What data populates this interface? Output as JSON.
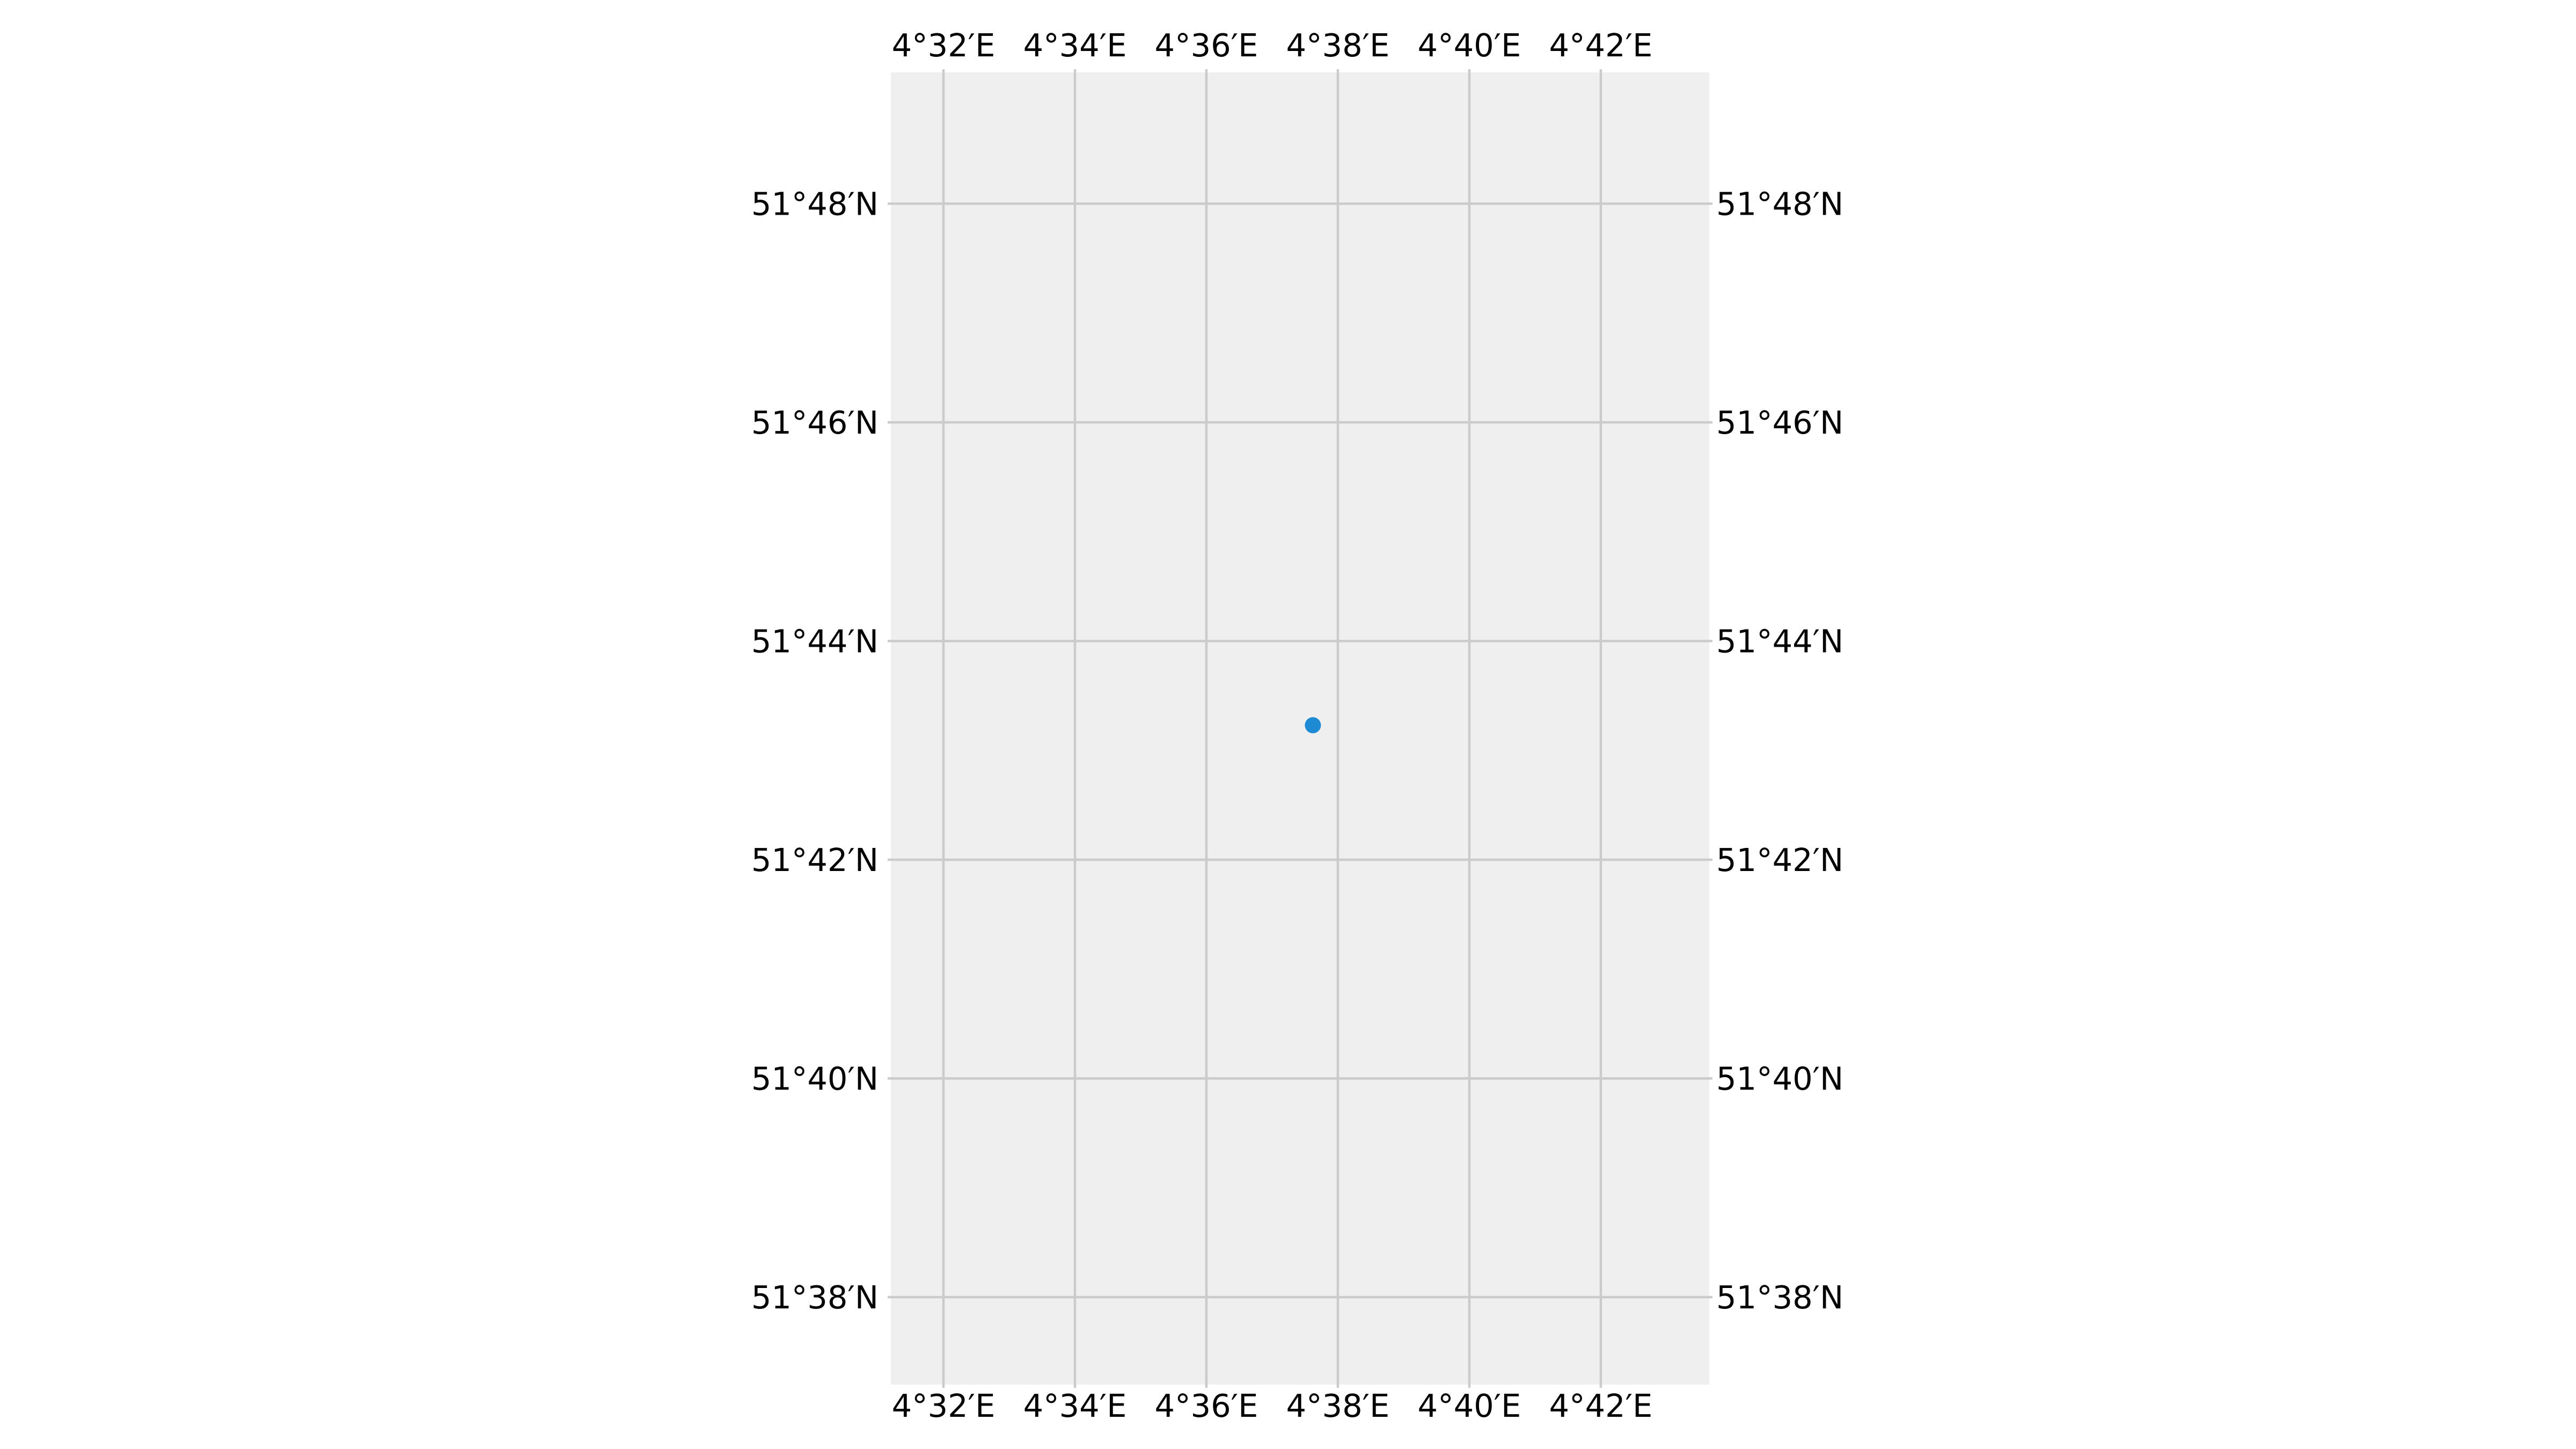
{
  "map": {
    "projection": "PlateCarree",
    "extent": {
      "lon_min_deg": 4.52,
      "lon_max_deg": 4.7275,
      "lat_min_deg": 51.62,
      "lat_max_deg": 51.82
    },
    "background_color": "#efefef",
    "grid": true,
    "grid_color": "#cbcbcb",
    "lon_gridlines": [
      {
        "value": 4.53333,
        "label": "4°32′E"
      },
      {
        "value": 4.56667,
        "label": "4°34′E"
      },
      {
        "value": 4.6,
        "label": "4°36′E"
      },
      {
        "value": 4.63333,
        "label": "4°38′E"
      },
      {
        "value": 4.66667,
        "label": "4°40′E"
      },
      {
        "value": 4.7,
        "label": "4°42′E"
      }
    ],
    "lat_gridlines": [
      {
        "value": 51.8,
        "label": "51°48′N"
      },
      {
        "value": 51.76667,
        "label": "51°46′N"
      },
      {
        "value": 51.73333,
        "label": "51°44′N"
      },
      {
        "value": 51.7,
        "label": "51°42′N"
      },
      {
        "value": 51.66667,
        "label": "51°40′N"
      },
      {
        "value": 51.63333,
        "label": "51°38′N"
      }
    ],
    "markers": [
      {
        "lon": 4.627,
        "lat": 51.7205,
        "color": "#1f8ad4",
        "shape": "circle-icon"
      }
    ]
  }
}
